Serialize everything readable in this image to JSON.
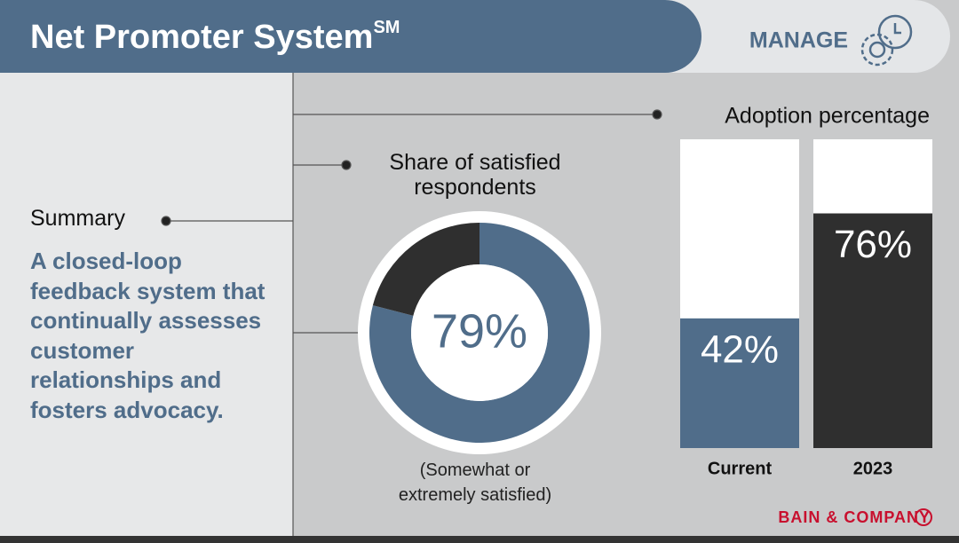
{
  "header": {
    "title": "Net Promoter System",
    "title_sup": "SM",
    "badge": "MANAGE"
  },
  "summary": {
    "heading": "Summary",
    "text": "A closed-loop feedback system that continually assesses customer relationships and fosters advocacy."
  },
  "brand": "BAIN & COMPANY",
  "chart_data": [
    {
      "type": "donut",
      "title": "Share of satisfied respondents",
      "note": "(Somewhat or extremely satisfied)",
      "series": [
        {
          "color": "#506d8a",
          "values": [
            79
          ],
          "value_labels": [
            "79%"
          ]
        },
        {
          "color": "#2f2f2f",
          "values": [
            21
          ]
        }
      ]
    },
    {
      "type": "bar",
      "title": "Adoption percentage",
      "categories": [
        "Current",
        "2023"
      ],
      "values": [
        42,
        76
      ],
      "value_labels": [
        "42%",
        "76%"
      ],
      "colors": [
        "#506d8a",
        "#2f2f2f"
      ],
      "ylim": [
        0,
        100
      ]
    }
  ]
}
